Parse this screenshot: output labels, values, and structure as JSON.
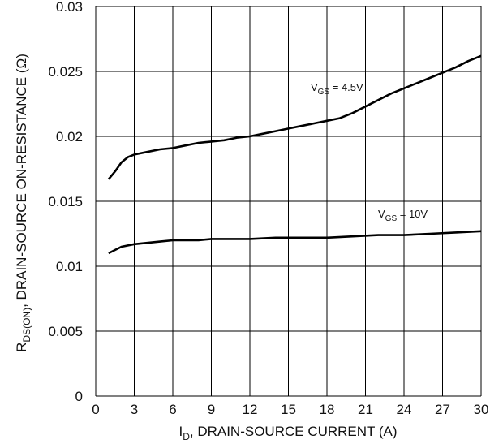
{
  "chart_data": {
    "type": "line",
    "xlabel": {
      "pre": "I",
      "sub": "D",
      "post": ", DRAIN-SOURCE CURRENT (A)"
    },
    "ylabel": {
      "pre": "R",
      "sub": "DS(ON)",
      "post": ", DRAIN-SOURCE ON-RESISTANCE (Ω)"
    },
    "xlim": [
      0,
      30
    ],
    "ylim": [
      0,
      0.03
    ],
    "xticks": [
      "0",
      "3",
      "6",
      "9",
      "12",
      "15",
      "18",
      "21",
      "24",
      "27",
      "30"
    ],
    "yticks": [
      "0",
      "0.005",
      "0.01",
      "0.015",
      "0.02",
      "0.025",
      "0.03"
    ],
    "grid": true,
    "series": [
      {
        "name": {
          "pre": "V",
          "sub": "GS",
          "post": " = 4.5V"
        },
        "x": [
          1,
          1.5,
          2,
          2.5,
          3,
          4,
          5,
          6,
          7,
          8,
          9,
          10,
          11,
          12,
          13,
          14,
          15,
          16,
          17,
          18,
          19,
          20,
          21,
          22,
          23,
          24,
          25,
          26,
          27,
          28,
          29,
          30
        ],
        "y": [
          0.0167,
          0.0173,
          0.018,
          0.0184,
          0.0186,
          0.0188,
          0.019,
          0.0191,
          0.0193,
          0.0195,
          0.0196,
          0.0197,
          0.0199,
          0.02,
          0.0202,
          0.0204,
          0.0206,
          0.0208,
          0.021,
          0.0212,
          0.0214,
          0.0218,
          0.0223,
          0.0228,
          0.0233,
          0.0237,
          0.0241,
          0.0245,
          0.0249,
          0.0253,
          0.0258,
          0.0262
        ]
      },
      {
        "name": {
          "pre": "V",
          "sub": "GS",
          "post": " = 10V"
        },
        "x": [
          1,
          2,
          3,
          4,
          5,
          6,
          7,
          8,
          9,
          10,
          12,
          14,
          16,
          18,
          20,
          22,
          24,
          26,
          28,
          30
        ],
        "y": [
          0.011,
          0.0115,
          0.0117,
          0.0118,
          0.0119,
          0.012,
          0.012,
          0.012,
          0.0121,
          0.0121,
          0.0121,
          0.0122,
          0.0122,
          0.0122,
          0.0123,
          0.0124,
          0.0124,
          0.0125,
          0.0126,
          0.0127
        ]
      }
    ]
  }
}
